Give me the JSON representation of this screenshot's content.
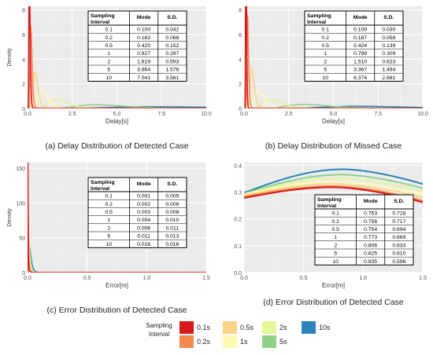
{
  "legend": {
    "title_line1": "Sampling",
    "title_line2": "Interval",
    "items": [
      {
        "label": "0.1s",
        "color": "#d7191c"
      },
      {
        "label": "0.2s",
        "color": "#f4894e"
      },
      {
        "label": "0.5s",
        "color": "#fdd38a"
      },
      {
        "label": "1s",
        "color": "#fffab0"
      },
      {
        "label": "2s",
        "color": "#e6f59a"
      },
      {
        "label": "5s",
        "color": "#8fd18b"
      },
      {
        "label": "10s",
        "color": "#2b83ba"
      }
    ]
  },
  "table_headers": [
    "Sampling Interval",
    "Mode",
    "S.D."
  ],
  "chart_data": [
    {
      "type": "line",
      "title": "(a) Delay Distribution of Detected Case",
      "xlabel": "Delay[s]",
      "ylabel": "Density",
      "xlim": [
        0,
        10
      ],
      "ylim": [
        0,
        8.3
      ],
      "xticks": [
        "0.0",
        "2.5",
        "5.0",
        "7.5",
        "10.0"
      ],
      "yticks": [
        "0",
        "2",
        "4",
        "6",
        "8"
      ],
      "table": [
        [
          "0.1",
          "0.100",
          "0.042"
        ],
        [
          "0.2",
          "0.182",
          "0.068"
        ],
        [
          "0.5",
          "0.420",
          "0.152"
        ],
        [
          "1",
          "0.827",
          "0.287"
        ],
        [
          "2",
          "1.619",
          "0.593"
        ],
        [
          "5",
          "3.864",
          "1.576"
        ],
        [
          "10",
          "7.041",
          "3.561"
        ]
      ],
      "series": [
        {
          "name": "0.1s",
          "mode": 0.1,
          "sd": 0.042
        },
        {
          "name": "0.2s",
          "mode": 0.182,
          "sd": 0.068
        },
        {
          "name": "0.5s",
          "mode": 0.42,
          "sd": 0.152
        },
        {
          "name": "1s",
          "mode": 0.827,
          "sd": 0.287
        },
        {
          "name": "2s",
          "mode": 1.619,
          "sd": 0.593
        },
        {
          "name": "5s",
          "mode": 3.864,
          "sd": 1.576
        },
        {
          "name": "10s",
          "mode": 7.041,
          "sd": 3.561
        }
      ]
    },
    {
      "type": "line",
      "title": "(b) Delay Distribution of Missed Case",
      "xlabel": "Delay[s]",
      "ylabel": "",
      "xlim": [
        0,
        10
      ],
      "ylim": [
        0,
        8.3
      ],
      "xticks": [
        "0.0",
        "2.5",
        "5.0",
        "7.5",
        "10.0"
      ],
      "yticks": [
        "0",
        "2",
        "4",
        "6",
        "8"
      ],
      "table": [
        [
          "0.1",
          "0.109",
          "0.030"
        ],
        [
          "0.2",
          "0.187",
          "0.058"
        ],
        [
          "0.5",
          "0.424",
          "0.139"
        ],
        [
          "1",
          "0.799",
          "0.309"
        ],
        [
          "2",
          "1.510",
          "0.623"
        ],
        [
          "5",
          "3.367",
          "1.494"
        ],
        [
          "10",
          "6.374",
          "2.661"
        ]
      ],
      "series": [
        {
          "name": "0.1s",
          "mode": 0.109,
          "sd": 0.03
        },
        {
          "name": "0.2s",
          "mode": 0.187,
          "sd": 0.058
        },
        {
          "name": "0.5s",
          "mode": 0.424,
          "sd": 0.139
        },
        {
          "name": "1s",
          "mode": 0.799,
          "sd": 0.309
        },
        {
          "name": "2s",
          "mode": 1.51,
          "sd": 0.623
        },
        {
          "name": "5s",
          "mode": 3.367,
          "sd": 1.494
        },
        {
          "name": "10s",
          "mode": 6.374,
          "sd": 2.661
        }
      ]
    },
    {
      "type": "line",
      "title": "(c) Error Distribution of Detected Case",
      "xlabel": "Error[m]",
      "ylabel": "Density",
      "xlim": [
        0,
        1.5
      ],
      "ylim": [
        0,
        158
      ],
      "xticks": [
        "0.0",
        "0.5",
        "1.0",
        "1.5"
      ],
      "yticks": [
        "0",
        "50",
        "100",
        "150"
      ],
      "table": [
        [
          "0.1",
          "0.001",
          "0.005"
        ],
        [
          "0.2",
          "0.002",
          "0.006"
        ],
        [
          "0.5",
          "0.003",
          "0.008"
        ],
        [
          "1",
          "0.004",
          "0.010"
        ],
        [
          "2",
          "0.006",
          "0.011"
        ],
        [
          "5",
          "0.011",
          "0.013"
        ],
        [
          "10",
          "0.016",
          "0.016"
        ]
      ],
      "series": [
        {
          "name": "0.1s",
          "mode": 0.001,
          "sd": 0.005
        },
        {
          "name": "0.2s",
          "mode": 0.002,
          "sd": 0.006
        },
        {
          "name": "0.5s",
          "mode": 0.003,
          "sd": 0.008
        },
        {
          "name": "1s",
          "mode": 0.004,
          "sd": 0.01
        },
        {
          "name": "2s",
          "mode": 0.006,
          "sd": 0.011
        },
        {
          "name": "5s",
          "mode": 0.011,
          "sd": 0.013
        },
        {
          "name": "10s",
          "mode": 0.016,
          "sd": 0.016
        }
      ]
    },
    {
      "type": "line",
      "title": "(d) Error Distribution of Detected Case",
      "xlabel": "Error[m]",
      "ylabel": "",
      "xlim": [
        0,
        1.5
      ],
      "ylim": [
        0,
        0.41
      ],
      "xticks": [
        "0.0",
        "0.5",
        "1.0",
        "1.5"
      ],
      "yticks": [
        "0.0",
        "0.1",
        "0.2",
        "0.3",
        "0.4"
      ],
      "table": [
        [
          "0.1",
          "0.753",
          "0.728"
        ],
        [
          "0.2",
          "0.756",
          "0.717"
        ],
        [
          "0.5",
          "0.754",
          "0.694"
        ],
        [
          "1",
          "0.773",
          "0.669"
        ],
        [
          "2",
          "0.806",
          "0.633"
        ],
        [
          "5",
          "0.825",
          "0.610"
        ],
        [
          "10",
          "0.835",
          "0.596"
        ]
      ],
      "series": [
        {
          "name": "0.1s",
          "mode": 0.753,
          "sd": 0.728
        },
        {
          "name": "0.2s",
          "mode": 0.756,
          "sd": 0.717
        },
        {
          "name": "0.5s",
          "mode": 0.754,
          "sd": 0.694
        },
        {
          "name": "1s",
          "mode": 0.773,
          "sd": 0.669
        },
        {
          "name": "2s",
          "mode": 0.806,
          "sd": 0.633
        },
        {
          "name": "5s",
          "mode": 0.825,
          "sd": 0.61
        },
        {
          "name": "10s",
          "mode": 0.835,
          "sd": 0.596
        }
      ]
    }
  ]
}
